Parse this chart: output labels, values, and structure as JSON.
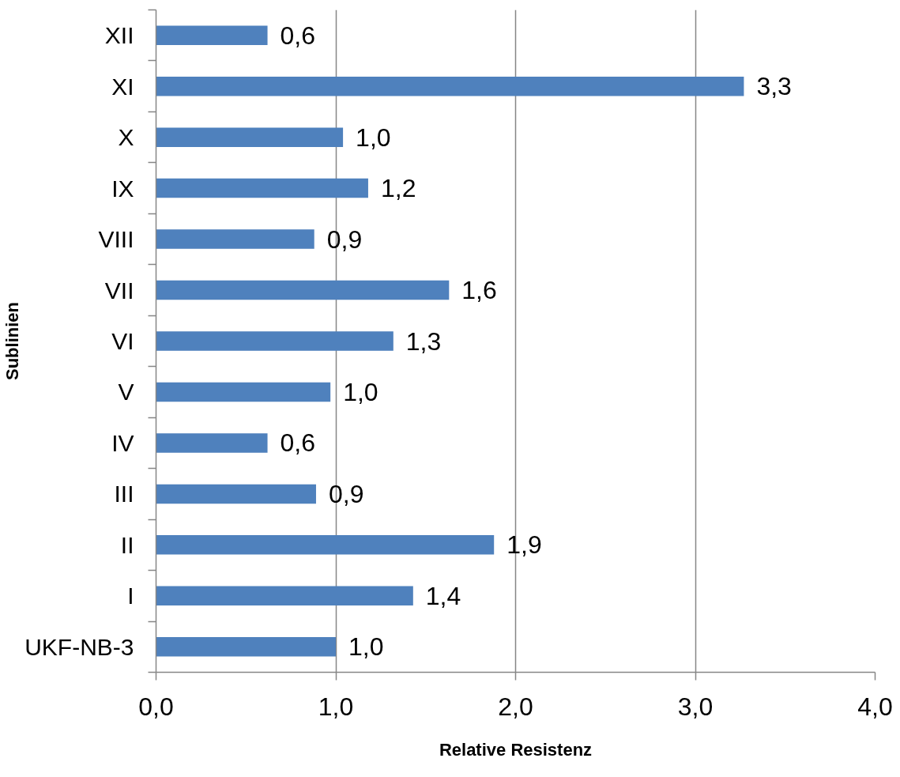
{
  "chart_data": {
    "type": "bar",
    "orientation": "horizontal",
    "xlabel": "Relative Resistenz",
    "ylabel": "Sublinien",
    "categories": [
      "XII",
      "XI",
      "X",
      "IX",
      "VIII",
      "VII",
      "VI",
      "V",
      "IV",
      "III",
      "II",
      "I",
      "UKF-NB-3"
    ],
    "values": [
      0.62,
      3.27,
      1.04,
      1.18,
      0.88,
      1.63,
      1.32,
      0.97,
      0.62,
      0.89,
      1.88,
      1.43,
      1.0
    ],
    "value_labels": [
      "0,6",
      "3,3",
      "1,0",
      "1,2",
      "0,9",
      "1,6",
      "1,3",
      "1,0",
      "0,6",
      "0,9",
      "1,9",
      "1,4",
      "1,0"
    ],
    "color": "#4f81bd",
    "xlim": [
      0,
      4
    ],
    "xticks": [
      {
        "value": 0,
        "label": "0,0"
      },
      {
        "value": 1,
        "label": "1,0"
      },
      {
        "value": 2,
        "label": "2,0"
      },
      {
        "value": 3,
        "label": "3,0"
      },
      {
        "value": 4,
        "label": "4,0"
      }
    ],
    "grid": "x"
  }
}
